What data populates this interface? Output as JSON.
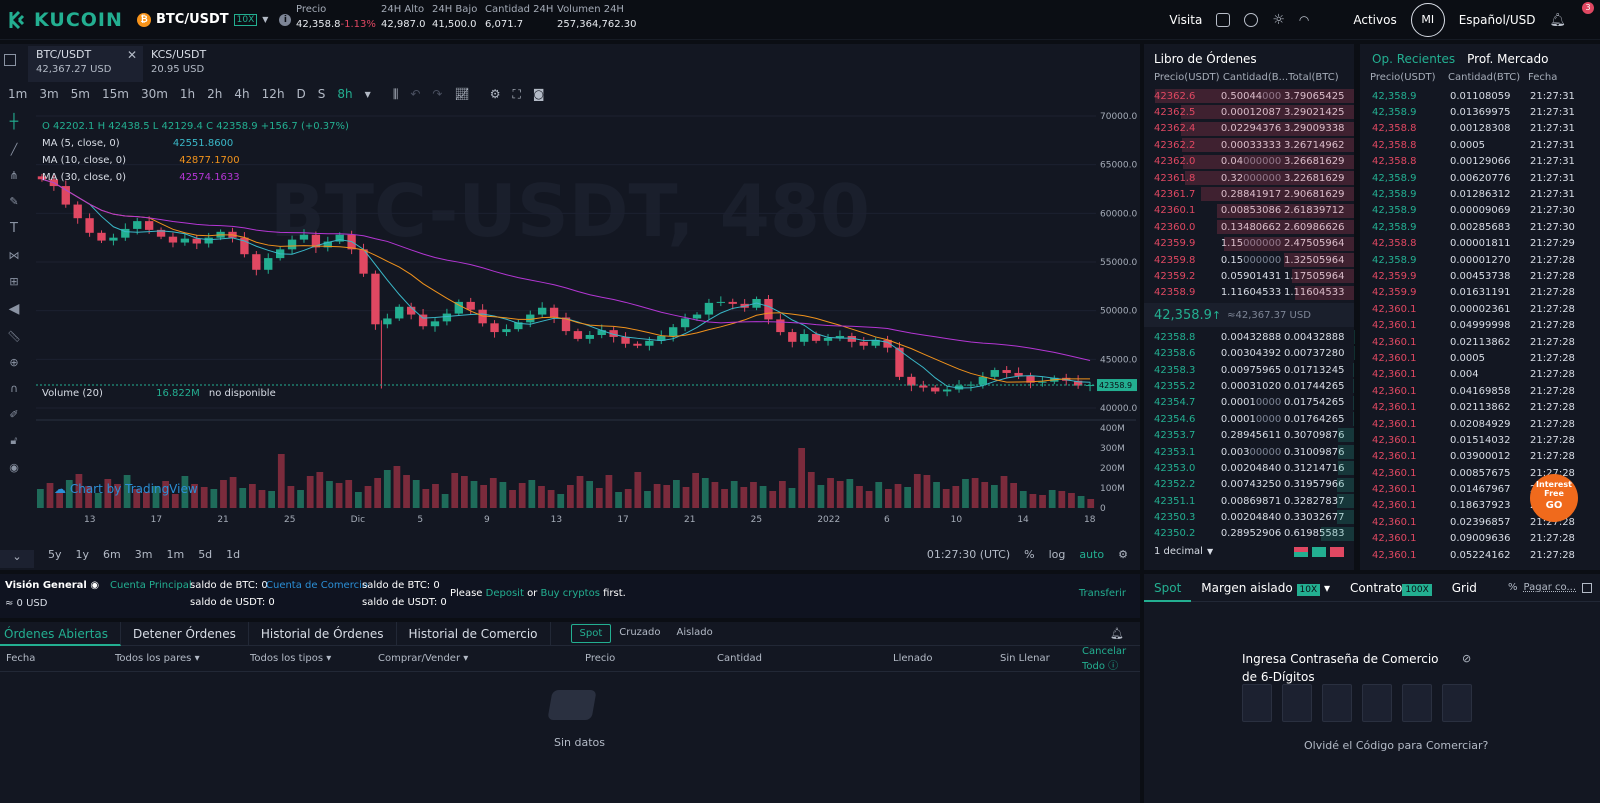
{
  "header": {
    "logo": "KUCOIN",
    "pair": "BTC/USDT",
    "leverage": "10X",
    "stats": [
      {
        "label": "Precio",
        "value": "42,358.8",
        "change": "-1.13%"
      },
      {
        "label": "24H Alto",
        "value": "42,987.0"
      },
      {
        "label": "24H Bajo",
        "value": "41,500.0"
      },
      {
        "label": "Cantidad 24H",
        "value": "6,071.7"
      },
      {
        "label": "Volumen 24H",
        "value": "257,364,762.30"
      }
    ],
    "visita": "Visita",
    "activos": "Activos",
    "avatar": "MI",
    "language": "Español/USD",
    "notifications": "3"
  },
  "chart_tabs": [
    {
      "pair": "BTC/USDT",
      "price": "42,367.27 USD"
    },
    {
      "pair": "KCS/USDT",
      "price": "20.95 USD"
    }
  ],
  "timeframes": [
    "1m",
    "3m",
    "5m",
    "15m",
    "30m",
    "1h",
    "2h",
    "4h",
    "12h",
    "D",
    "S",
    "8h"
  ],
  "selected_timeframe": "8h",
  "legend": {
    "ohlc": "O 42202.1  H 42438.5  L 42129.4  C 42358.9  +156.7 (+0.37%)",
    "ma5_label": "MA (5, close, 0)",
    "ma5_value": "42551.8600",
    "ma10_label": "MA (10, close, 0)",
    "ma10_value": "42877.1700",
    "ma30_label": "MA (30, close, 0)",
    "ma30_value": "42574.1633",
    "volume_label": "Volume (20)",
    "volume_value": "16.822M",
    "volume_na": "no disponible",
    "watermark": "BTC-USDT, 480",
    "tradingview": "Chart by TradingView"
  },
  "colors": {
    "up": "#23af91",
    "down": "#e04862",
    "ma5": "#3ab8c8",
    "ma10": "#f0921c",
    "ma30": "#b436d4"
  },
  "chart_data": {
    "type": "candlestick",
    "price_axis": [
      "70000.0",
      "65000.0",
      "60000.0",
      "55000.0",
      "50000.0",
      "45000.0",
      "40000.0"
    ],
    "last_price_tag": "42358.9",
    "volume_axis": [
      "400M",
      "300M",
      "200M",
      "100M",
      "0"
    ],
    "x_labels": [
      "13",
      "17",
      "21",
      "25",
      "Dic",
      "5",
      "9",
      "13",
      "17",
      "21",
      "25",
      "2022",
      "6",
      "10",
      "14",
      "18"
    ],
    "ylim": [
      40000,
      70000
    ],
    "close_series": [
      63500,
      62800,
      60900,
      59500,
      58000,
      57200,
      57500,
      58400,
      59200,
      58300,
      57600,
      57000,
      57400,
      56900,
      57500,
      58100,
      57500,
      55800,
      54200,
      55400,
      56300,
      57300,
      57800,
      56500,
      57100,
      57800,
      56300,
      53800,
      48600,
      49200,
      50400,
      49600,
      48400,
      48900,
      49700,
      50900,
      50100,
      48700,
      47800,
      48100,
      48800,
      49600,
      50300,
      49300,
      47900,
      47100,
      47500,
      48000,
      47300,
      46600,
      46400,
      46900,
      47400,
      48300,
      49200,
      49600,
      50800,
      50900,
      50700,
      50300,
      51200,
      49100,
      47800,
      46800,
      47600,
      46900,
      47200,
      47400,
      46800,
      46400,
      47000,
      46200,
      43200,
      42300,
      42100,
      41700,
      41900,
      42300,
      42400,
      43200,
      43900,
      43600,
      43300,
      42600,
      42700,
      43100,
      42800,
      42300,
      42359
    ],
    "volume_series": [
      95,
      125,
      85,
      140,
      170,
      110,
      75,
      145,
      120,
      165,
      95,
      80,
      110,
      135,
      70,
      160,
      120,
      105,
      95,
      140,
      155,
      100,
      120,
      90,
      85,
      270,
      110,
      90,
      160,
      180,
      135,
      125,
      140,
      80,
      110,
      150,
      190,
      210,
      165,
      140,
      95,
      120,
      70,
      175,
      160,
      135,
      115,
      150,
      130,
      90,
      125,
      140,
      110,
      90,
      70,
      115,
      160,
      135,
      100,
      165,
      80,
      95,
      180,
      85,
      120,
      115,
      140,
      105,
      175,
      150,
      130,
      95,
      135,
      105,
      130,
      110,
      85,
      135,
      100,
      300,
      180,
      115,
      150,
      135,
      145,
      110,
      85,
      130,
      95,
      120,
      105,
      170,
      165,
      130,
      95,
      110,
      145,
      150,
      130,
      115,
      160,
      125,
      85,
      70,
      65,
      90,
      85,
      75,
      60,
      45
    ]
  },
  "bottom_tf": [
    "5y",
    "1y",
    "6m",
    "3m",
    "1m",
    "5d",
    "1d"
  ],
  "clock": "01:27:30 (UTC)",
  "scale_opts": [
    "%",
    "log",
    "auto"
  ],
  "orderbook": {
    "title": "Libro de Órdenes",
    "cols": [
      "Precio(USDT)",
      "Cantidad(B...",
      "Total(BTC)"
    ],
    "asks": [
      [
        "42362.6",
        "0.50044",
        "000",
        "3.79065425"
      ],
      [
        "42362.5",
        "0.00012087",
        "",
        "3.29021425"
      ],
      [
        "42362.4",
        "0.02294376",
        "",
        "3.29009338"
      ],
      [
        "42362.2",
        "0.00033333",
        "",
        "3.26714962"
      ],
      [
        "42362.0",
        "0.04",
        "000000",
        "3.26681629"
      ],
      [
        "42361.8",
        "0.32",
        "000000",
        "3.22681629"
      ],
      [
        "42361.7",
        "0.28841917",
        "",
        "2.90681629"
      ],
      [
        "42360.1",
        "0.00853086",
        "",
        "2.61839712"
      ],
      [
        "42360.0",
        "0.13480662",
        "",
        "2.60986626"
      ],
      [
        "42359.9",
        "1.15",
        "000000",
        "2.47505964"
      ],
      [
        "42359.8",
        "0.15",
        "000000",
        "1.32505964"
      ],
      [
        "42359.2",
        "0.05901431",
        "",
        "1.17505964"
      ],
      [
        "42358.9",
        "1.11604533",
        "",
        "1.11604533"
      ]
    ],
    "mid_price": "42,358.9",
    "mid_arrow": "↑",
    "mid_usd": "≈42,367.37 USD",
    "bids": [
      [
        "42358.8",
        "0.00432888",
        "",
        "0.00432888"
      ],
      [
        "42358.6",
        "0.00304392",
        "",
        "0.00737280"
      ],
      [
        "42358.3",
        "0.00975965",
        "",
        "0.01713245"
      ],
      [
        "42355.2",
        "0.00031020",
        "",
        "0.01744265"
      ],
      [
        "42354.7",
        "0.0001",
        "0000",
        "0.01754265"
      ],
      [
        "42354.6",
        "0.0001",
        "0000",
        "0.01764265"
      ],
      [
        "42353.7",
        "0.28945611",
        "",
        "0.30709876"
      ],
      [
        "42353.1",
        "0.003",
        "00000",
        "0.31009876"
      ],
      [
        "42353.0",
        "0.00204840",
        "",
        "0.31214716"
      ],
      [
        "42352.2",
        "0.00743250",
        "",
        "0.31957966"
      ],
      [
        "42351.1",
        "0.00869871",
        "",
        "0.32827837"
      ],
      [
        "42350.3",
        "0.00204840",
        "",
        "0.33032677"
      ],
      [
        "42350.2",
        "0.28952906",
        "",
        "0.61985583"
      ]
    ],
    "decimal": "1 decimal"
  },
  "trades": {
    "tab1": "Op. Recientes",
    "tab2": "Prof. Mercado",
    "cols": [
      "Precio(USDT)",
      "Cantidad(BTC)",
      "Fecha"
    ],
    "rows": [
      [
        "42,358.9",
        "0.01108059",
        "21:27:31",
        "g"
      ],
      [
        "42,358.9",
        "0.01369975",
        "21:27:31",
        "g"
      ],
      [
        "42,358.8",
        "0.00128308",
        "21:27:31",
        "r"
      ],
      [
        "42,358.8",
        "0.0005",
        "21:27:31",
        "r"
      ],
      [
        "42,358.8",
        "0.00129066",
        "21:27:31",
        "r"
      ],
      [
        "42,358.9",
        "0.00620776",
        "21:27:31",
        "g"
      ],
      [
        "42,358.9",
        "0.01286312",
        "21:27:31",
        "g"
      ],
      [
        "42,358.9",
        "0.00009069",
        "21:27:30",
        "g"
      ],
      [
        "42,358.9",
        "0.00285683",
        "21:27:30",
        "g"
      ],
      [
        "42,358.8",
        "0.00001811",
        "21:27:29",
        "r"
      ],
      [
        "42,358.9",
        "0.00001270",
        "21:27:28",
        "g"
      ],
      [
        "42,359.9",
        "0.00453738",
        "21:27:28",
        "r"
      ],
      [
        "42,359.9",
        "0.01631191",
        "21:27:28",
        "r"
      ],
      [
        "42,360.1",
        "0.00002361",
        "21:27:28",
        "r"
      ],
      [
        "42,360.1",
        "0.04999998",
        "21:27:28",
        "r"
      ],
      [
        "42,360.1",
        "0.02113862",
        "21:27:28",
        "r"
      ],
      [
        "42,360.1",
        "0.0005",
        "21:27:28",
        "r"
      ],
      [
        "42,360.1",
        "0.004",
        "21:27:28",
        "r"
      ],
      [
        "42,360.1",
        "0.04169858",
        "21:27:28",
        "r"
      ],
      [
        "42,360.1",
        "0.02113862",
        "21:27:28",
        "r"
      ],
      [
        "42,360.1",
        "0.02084929",
        "21:27:28",
        "r"
      ],
      [
        "42,360.1",
        "0.01514032",
        "21:27:28",
        "r"
      ],
      [
        "42,360.1",
        "0.03900012",
        "21:27:28",
        "r"
      ],
      [
        "42,360.1",
        "0.00857675",
        "21:27:28",
        "r"
      ],
      [
        "42,360.1",
        "0.01467967",
        "21:27:28",
        "r"
      ],
      [
        "42,360.1",
        "0.18637923",
        "21:27:28",
        "r"
      ],
      [
        "42,360.1",
        "0.02396857",
        "21:27:28",
        "r"
      ],
      [
        "42,360.1",
        "0.09009636",
        "21:27:28",
        "r"
      ],
      [
        "42,360.1",
        "0.05224162",
        "21:27:28",
        "r"
      ]
    ],
    "promo": "Interest Free",
    "promo_go": "GO"
  },
  "overview": {
    "title": "Visión General",
    "total": "≈ 0 USD",
    "main_account": "Cuenta Principal",
    "trade_account": "Cuenta de Comercio",
    "btc_bal": "saldo de BTC: 0",
    "usdt_bal": "saldo de USDT: 0",
    "please": "Please",
    "deposit": "Deposit",
    "or": "or",
    "buy": "Buy cryptos",
    "first": "first.",
    "transfer": "Transferir"
  },
  "orders": {
    "tabs": [
      "Órdenes Abiertas",
      "Detener Órdenes",
      "Historial de Órdenes",
      "Historial de Comercio"
    ],
    "segments": [
      "Spot",
      "Cruzado",
      "Aislado"
    ],
    "cols": [
      "Fecha",
      "Todos los pares",
      "Todos los tipos",
      "Comprar/Vender",
      "Precio",
      "Cantidad",
      "Llenado",
      "Sin Llenar",
      "Cancelar Todo"
    ],
    "empty": "Sin datos"
  },
  "trade": {
    "tabs": [
      "Spot",
      "Margen aislado",
      "Contrato",
      "Grid"
    ],
    "margin_lev": "10X",
    "contract_lev": "100X",
    "pay": "Pagar co...",
    "pin_title": "Ingresa Contraseña de Comercio de 6-Dígitos",
    "forgot": "Olvidé el Código para Comerciar?"
  }
}
